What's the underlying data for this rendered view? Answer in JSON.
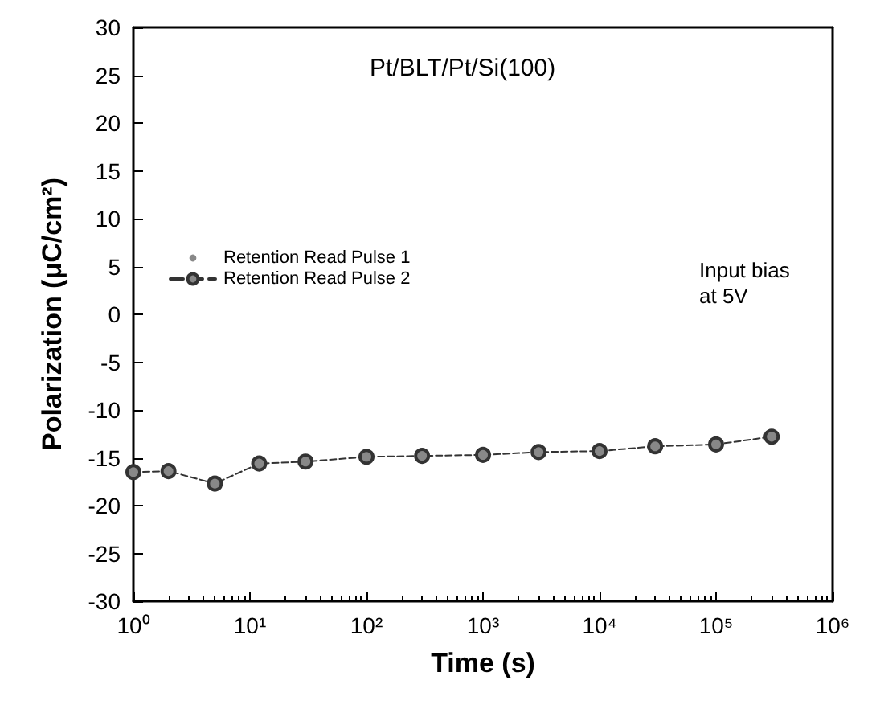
{
  "chart_data": {
    "type": "line",
    "title": "Pt/BLT/Pt/Si(100)",
    "xlabel": "Time (s)",
    "ylabel": "Polarization (μC/cm²)",
    "annotations": [
      "Input bias at 5V"
    ],
    "x": [
      1,
      2,
      5,
      12,
      30,
      100,
      300,
      1000,
      3000,
      10000,
      30000,
      100000,
      300000
    ],
    "series": [
      {
        "name": "Retention Read Pulse 1",
        "color": "#ffffff",
        "values": [
          null,
          null,
          null,
          null,
          null,
          null,
          null,
          null,
          null,
          null,
          null,
          null,
          null
        ]
      },
      {
        "name": "Retention Read Pulse 2",
        "color": "#333333",
        "values": [
          -16.5,
          -16.4,
          -17.7,
          -15.6,
          -15.4,
          -14.9,
          -14.8,
          -14.7,
          -14.4,
          -14.3,
          -13.8,
          -13.6,
          -12.8
        ]
      }
    ],
    "log": "x",
    "xlim": [
      1,
      1000000
    ],
    "xticks": [
      {
        "value": 1,
        "label": "10⁰"
      },
      {
        "value": 10,
        "label": "10¹"
      },
      {
        "value": 100,
        "label": "10²"
      },
      {
        "value": 1000,
        "label": "10³"
      },
      {
        "value": 10000,
        "label": "10⁴"
      },
      {
        "value": 100000,
        "label": "10⁵"
      },
      {
        "value": 1000000,
        "label": "10⁶"
      }
    ],
    "ylim": [
      -30,
      30
    ],
    "yticks": [
      -30,
      -25,
      -20,
      -15,
      -10,
      -5,
      0,
      5,
      10,
      15,
      20,
      25,
      30
    ],
    "grid": false,
    "legend": "top left",
    "marker": "circle",
    "line_style": "dashed"
  }
}
